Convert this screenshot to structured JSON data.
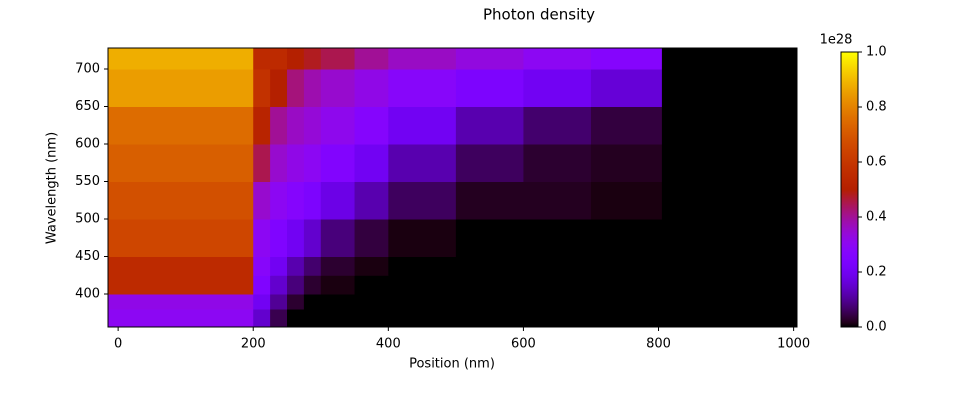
{
  "chart_data": {
    "type": "heatmap",
    "title": "Photon density",
    "x_label": "Position (nm)",
    "y_label": "Wavelength (nm)",
    "colormap": "gnuplot",
    "x_edges": [
      -15,
      200,
      225,
      250,
      275,
      300,
      350,
      400,
      500,
      600,
      700,
      805,
      1005
    ],
    "y_edges": [
      356,
      380,
      400,
      425,
      450,
      500,
      550,
      600,
      650,
      700,
      728
    ],
    "values": [
      [
        0.3,
        0.15,
        0.05,
        0,
        0,
        0,
        0,
        0,
        0,
        0,
        0,
        0
      ],
      [
        0.32,
        0.2,
        0.1,
        0.03,
        0,
        0,
        0,
        0,
        0,
        0,
        0,
        0
      ],
      [
        0.55,
        0.25,
        0.15,
        0.08,
        0.03,
        0.01,
        0,
        0,
        0,
        0,
        0,
        0
      ],
      [
        0.55,
        0.28,
        0.2,
        0.12,
        0.07,
        0.03,
        0.01,
        0,
        0,
        0,
        0,
        0
      ],
      [
        0.65,
        0.3,
        0.25,
        0.2,
        0.15,
        0.08,
        0.04,
        0.01,
        0,
        0,
        0,
        0
      ],
      [
        0.68,
        0.35,
        0.3,
        0.27,
        0.24,
        0.18,
        0.12,
        0.06,
        0.02,
        0.02,
        0.01,
        0
      ],
      [
        0.72,
        0.45,
        0.35,
        0.32,
        0.3,
        0.26,
        0.2,
        0.12,
        0.06,
        0.03,
        0.02,
        0
      ],
      [
        0.75,
        0.52,
        0.4,
        0.36,
        0.34,
        0.31,
        0.27,
        0.2,
        0.12,
        0.07,
        0.04,
        0
      ],
      [
        0.85,
        0.58,
        0.5,
        0.42,
        0.38,
        0.35,
        0.32,
        0.28,
        0.24,
        0.2,
        0.16,
        0
      ],
      [
        0.88,
        0.55,
        0.55,
        0.5,
        0.48,
        0.45,
        0.4,
        0.36,
        0.33,
        0.3,
        0.27,
        0
      ]
    ],
    "xlim": [
      -15,
      1005
    ],
    "ylim": [
      356,
      728
    ],
    "xticks": [
      0,
      200,
      400,
      600,
      800,
      1000
    ],
    "yticks": [
      400,
      450,
      500,
      550,
      600,
      650,
      700
    ],
    "clim": [
      0,
      1
    ],
    "cticks": [
      {
        "value": 0,
        "label": "0.0"
      },
      0.2,
      0.4,
      0.6,
      0.8,
      {
        "value": 1,
        "label": "1.0"
      }
    ],
    "colorbar_offset_label": "1e28"
  }
}
